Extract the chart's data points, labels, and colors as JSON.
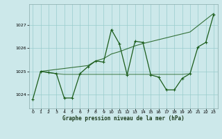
{
  "title": "Graphe pression niveau de la mer (hPa)",
  "bg_color": "#cce8ea",
  "grid_color": "#99cccc",
  "line_color": "#1a5c1a",
  "xmin": -0.5,
  "xmax": 23.5,
  "ymin": 1023.4,
  "ymax": 1027.9,
  "yticks": [
    1024,
    1025,
    1026,
    1027
  ],
  "xticks": [
    0,
    1,
    2,
    3,
    4,
    5,
    6,
    7,
    8,
    9,
    10,
    11,
    12,
    13,
    14,
    15,
    16,
    17,
    18,
    19,
    20,
    21,
    22,
    23
  ],
  "s1_x": [
    0,
    1,
    2,
    3,
    4,
    5,
    6,
    7,
    8,
    9,
    10,
    11,
    12,
    13,
    14,
    15,
    16,
    17,
    18,
    19,
    20,
    21,
    22,
    23
  ],
  "s1_y": [
    1023.8,
    1025.0,
    1024.95,
    1024.9,
    1023.85,
    1023.85,
    1024.9,
    1025.2,
    1025.45,
    1025.4,
    1026.8,
    1026.2,
    1024.85,
    1026.3,
    1026.25,
    1024.85,
    1024.75,
    1024.2,
    1024.2,
    1024.7,
    1024.9,
    1026.05,
    1026.25,
    1027.45
  ],
  "s2_x": [
    1,
    7,
    8,
    9,
    10,
    11,
    13,
    14,
    20,
    23
  ],
  "s2_y": [
    1025.0,
    1025.25,
    1025.45,
    1025.55,
    1025.75,
    1025.85,
    1026.1,
    1026.2,
    1026.7,
    1027.5
  ],
  "s3_x": [
    1,
    2,
    3,
    4,
    5,
    6,
    7,
    8,
    9,
    10,
    11,
    12,
    13,
    14,
    15,
    16,
    17,
    18,
    19,
    20
  ],
  "s3_y": [
    1025.0,
    1024.95,
    1024.9,
    1024.87,
    1024.87,
    1024.87,
    1024.87,
    1024.87,
    1024.87,
    1024.87,
    1024.87,
    1024.87,
    1024.87,
    1024.87,
    1024.87,
    1024.87,
    1024.87,
    1024.87,
    1024.87,
    1024.9
  ]
}
